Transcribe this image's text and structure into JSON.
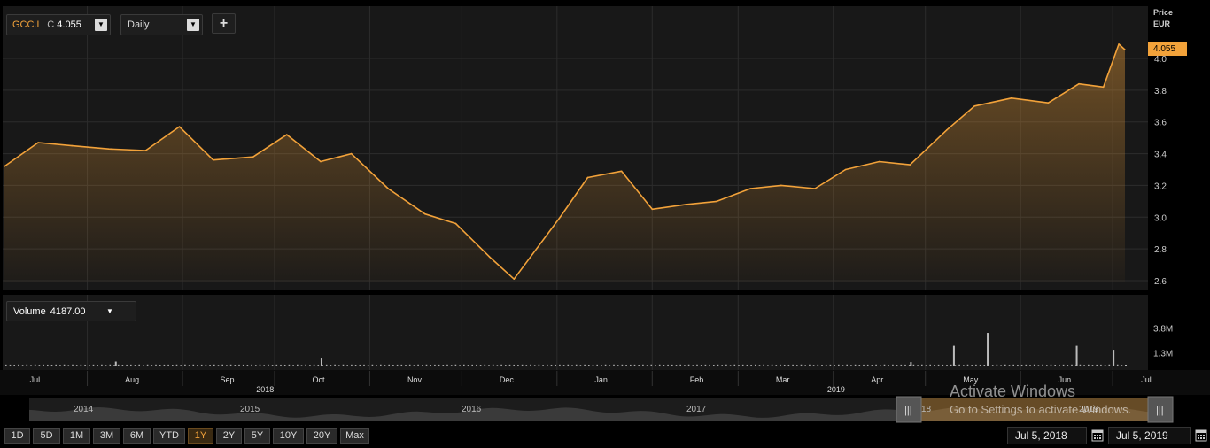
{
  "instrument": {
    "symbol": "GCC.L",
    "close_prefix": "C",
    "close_value": "4.055"
  },
  "interval": {
    "selected": "Daily"
  },
  "add_button": "+",
  "price_axis": {
    "title": "Price",
    "currency": "EUR",
    "ticks": [
      "4.0",
      "3.8",
      "3.6",
      "3.4",
      "3.2",
      "3.0",
      "2.8",
      "2.6"
    ],
    "last_price_tag": "4.055"
  },
  "volume": {
    "label": "Volume",
    "value": "4187.00",
    "ticks": [
      "3.8M",
      "1.3M"
    ]
  },
  "time_axis": {
    "months": [
      "Jul",
      "Aug",
      "Sep",
      "Oct",
      "Nov",
      "Dec",
      "Jan",
      "Feb",
      "Mar",
      "Apr",
      "May",
      "Jun",
      "Jul"
    ],
    "years": [
      "2018",
      "2019"
    ]
  },
  "navigator": {
    "years": [
      "2014",
      "2015",
      "2016",
      "2017",
      "18",
      "2019"
    ]
  },
  "ranges": [
    "1D",
    "5D",
    "1M",
    "3M",
    "6M",
    "YTD",
    "1Y",
    "2Y",
    "5Y",
    "10Y",
    "20Y",
    "Max"
  ],
  "active_range": "1Y",
  "date_range": {
    "from": "Jul 5, 2018",
    "to": "Jul 5, 2019"
  },
  "watermark": {
    "title": "Activate Windows",
    "subtitle": "Go to Settings to activate Windows."
  },
  "colors": {
    "line": "#f2a23a",
    "background": "#181818",
    "grid": "#2c2c2c"
  },
  "chart_data": {
    "type": "area",
    "ylabel": "Price EUR",
    "ylim": [
      2.55,
      4.15
    ],
    "grid": true,
    "x": [
      "2018-07-05",
      "2018-07-16",
      "2018-07-27",
      "2018-08-08",
      "2018-08-20",
      "2018-08-31",
      "2018-09-11",
      "2018-09-24",
      "2018-10-05",
      "2018-10-16",
      "2018-10-26",
      "2018-11-07",
      "2018-11-19",
      "2018-11-29",
      "2018-12-10",
      "2018-12-18",
      "2019-01-02",
      "2019-01-11",
      "2019-01-22",
      "2019-02-01",
      "2019-02-12",
      "2019-02-22",
      "2019-03-05",
      "2019-03-15",
      "2019-03-26",
      "2019-04-05",
      "2019-04-16",
      "2019-04-26",
      "2019-05-08",
      "2019-05-17",
      "2019-05-29",
      "2019-06-10",
      "2019-06-20",
      "2019-06-28",
      "2019-07-03",
      "2019-07-05"
    ],
    "y": [
      3.32,
      3.47,
      3.45,
      3.43,
      3.42,
      3.57,
      3.36,
      3.38,
      3.52,
      3.35,
      3.4,
      3.18,
      3.02,
      2.96,
      2.75,
      2.61,
      3.0,
      3.25,
      3.29,
      3.05,
      3.08,
      3.1,
      3.18,
      3.2,
      3.18,
      3.3,
      3.35,
      3.33,
      3.55,
      3.7,
      3.75,
      3.72,
      3.84,
      3.82,
      4.09,
      4.055
    ],
    "volume": {
      "ticks_values_M": [
        3.8,
        1.3
      ],
      "spikes": [
        {
          "date": "2018-08-10",
          "value_M": 0.4
        },
        {
          "date": "2018-10-16",
          "value_M": 0.8
        },
        {
          "date": "2019-04-26",
          "value_M": 0.35
        },
        {
          "date": "2019-05-10",
          "value_M": 2.0
        },
        {
          "date": "2019-05-21",
          "value_M": 3.3
        },
        {
          "date": "2019-06-19",
          "value_M": 2.0
        },
        {
          "date": "2019-07-01",
          "value_M": 1.6
        },
        {
          "date": "2019-07-05",
          "value_M": 0.004187
        }
      ],
      "typical_value_M": 0.1
    }
  }
}
